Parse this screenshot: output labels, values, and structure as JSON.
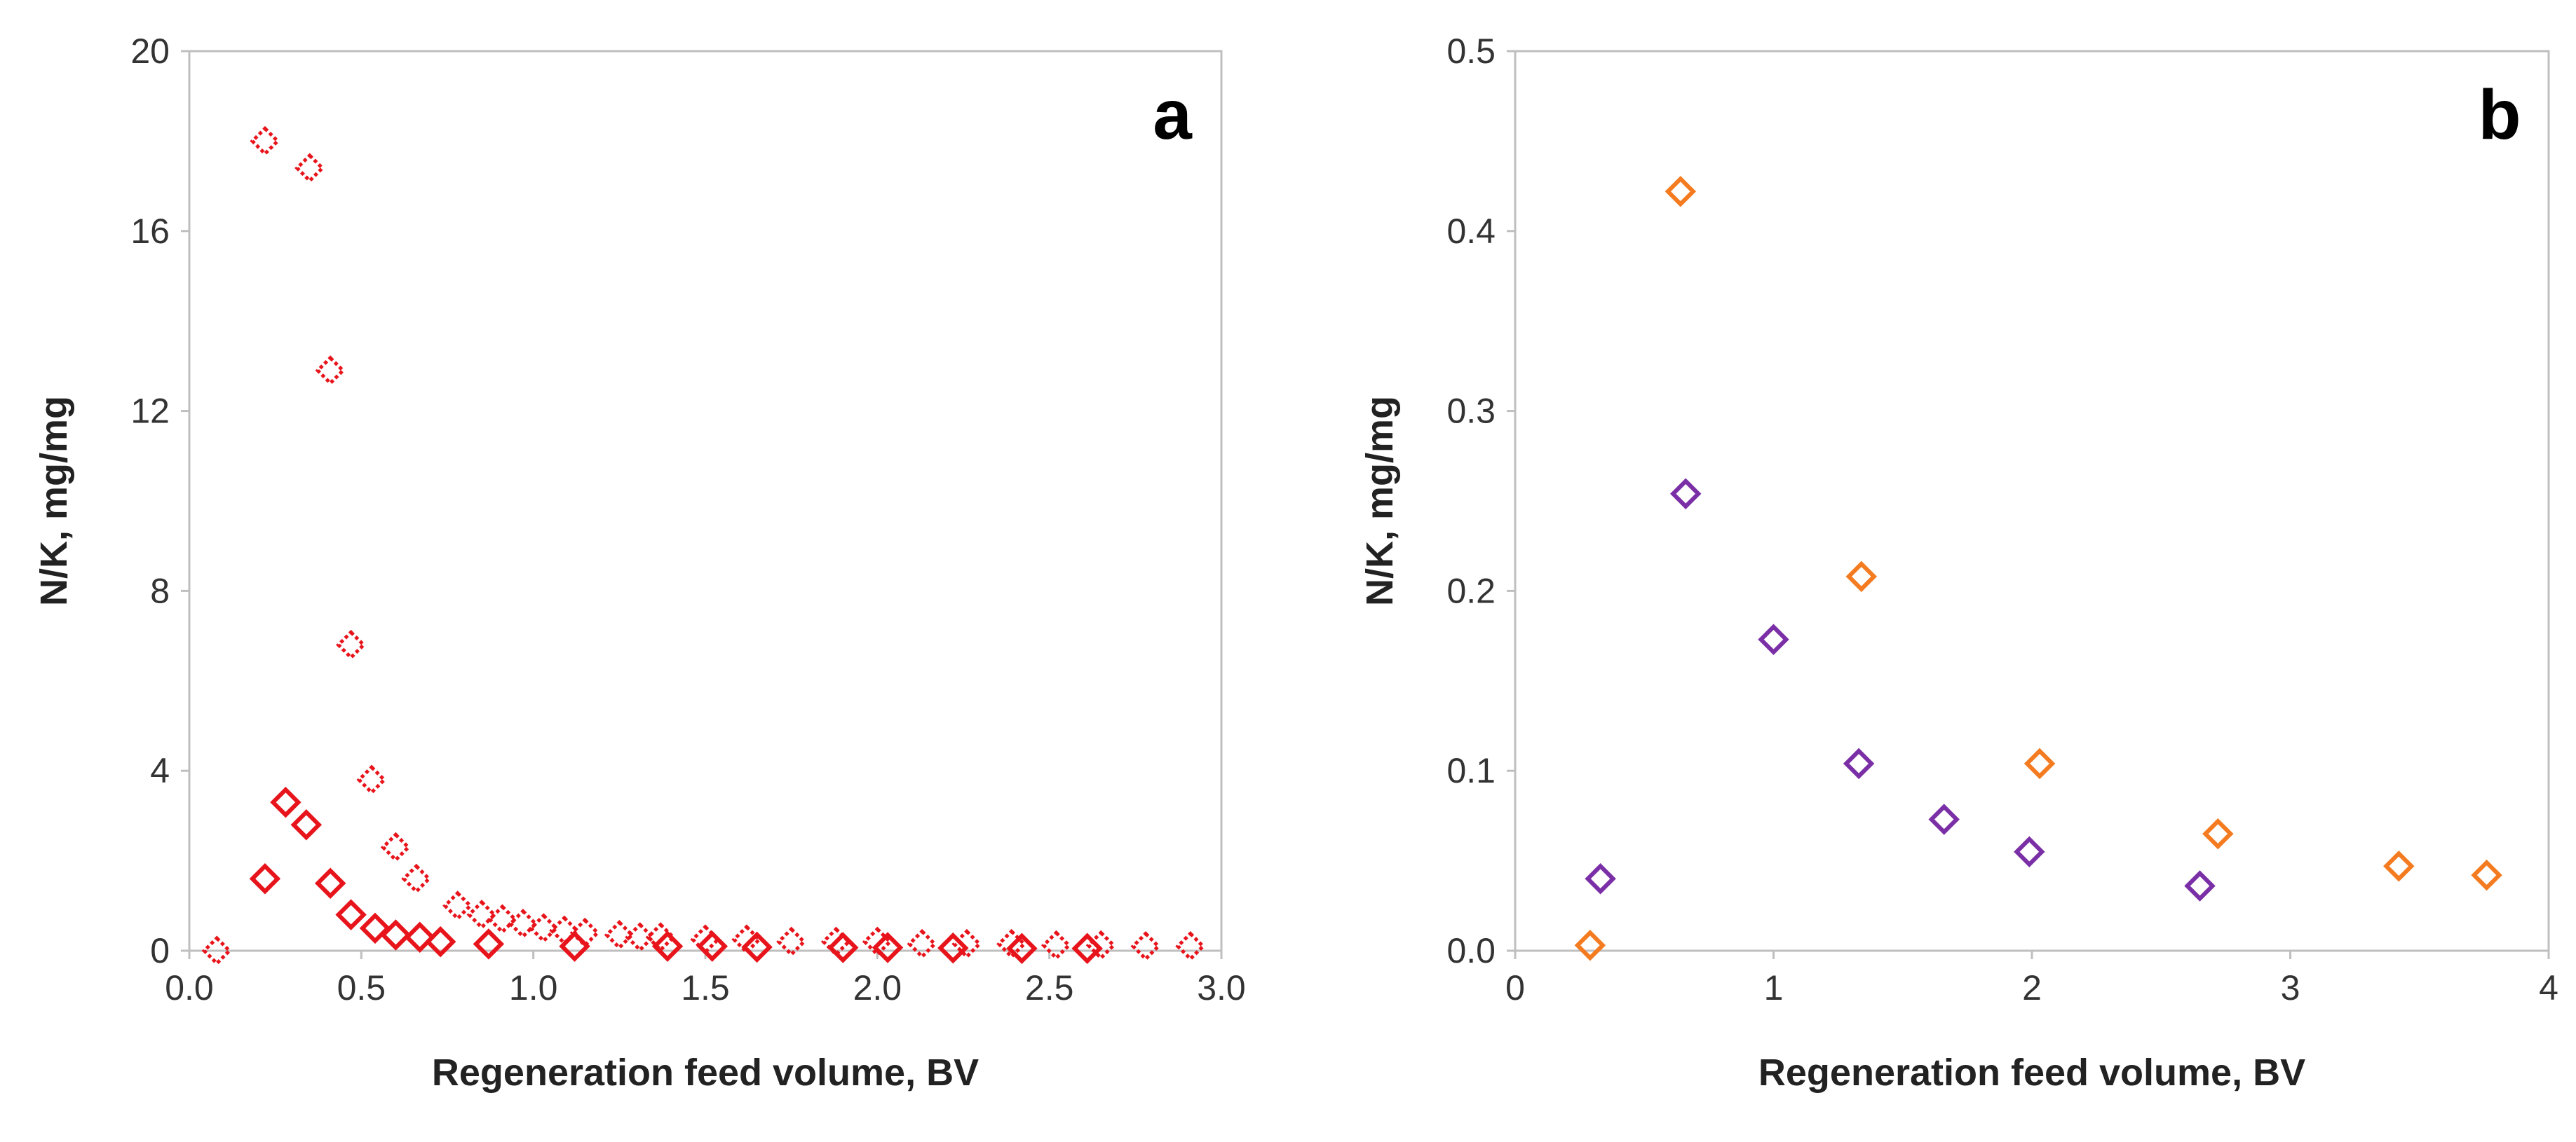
{
  "chart_data": [
    {
      "type": "scatter",
      "panel_label": "a",
      "xlabel": "Regeneration feed volume, BV",
      "ylabel": "N/K, mg/mg",
      "xlim": [
        0,
        3
      ],
      "ylim": [
        0,
        20
      ],
      "xticks": [
        "0.0",
        "0.5",
        "1.0",
        "1.5",
        "2.0",
        "2.5",
        "3.0"
      ],
      "yticks": [
        "0",
        "4",
        "8",
        "12",
        "16",
        "20"
      ],
      "grid": false,
      "legend": "none",
      "series": [
        {
          "style": "dotted",
          "marker": "diamond-open",
          "color": "#e8141b",
          "points": [
            [
              0.08,
              0.0
            ],
            [
              0.22,
              18.0
            ],
            [
              0.35,
              17.4
            ],
            [
              0.41,
              12.9
            ],
            [
              0.47,
              6.8
            ],
            [
              0.53,
              3.8
            ],
            [
              0.6,
              2.3
            ],
            [
              0.66,
              1.6
            ],
            [
              0.78,
              1.0
            ],
            [
              0.85,
              0.8
            ],
            [
              0.91,
              0.7
            ],
            [
              0.97,
              0.6
            ],
            [
              1.03,
              0.5
            ],
            [
              1.09,
              0.45
            ],
            [
              1.15,
              0.4
            ],
            [
              1.25,
              0.35
            ],
            [
              1.31,
              0.3
            ],
            [
              1.37,
              0.3
            ],
            [
              1.5,
              0.25
            ],
            [
              1.62,
              0.25
            ],
            [
              1.75,
              0.2
            ],
            [
              1.88,
              0.2
            ],
            [
              2.0,
              0.2
            ],
            [
              2.13,
              0.15
            ],
            [
              2.26,
              0.15
            ],
            [
              2.39,
              0.15
            ],
            [
              2.52,
              0.12
            ],
            [
              2.65,
              0.12
            ],
            [
              2.78,
              0.1
            ],
            [
              2.91,
              0.1
            ]
          ]
        },
        {
          "style": "solid",
          "marker": "diamond-open",
          "color": "#e8141b",
          "points": [
            [
              0.22,
              1.6
            ],
            [
              0.28,
              3.3
            ],
            [
              0.34,
              2.8
            ],
            [
              0.41,
              1.5
            ],
            [
              0.47,
              0.8
            ],
            [
              0.54,
              0.5
            ],
            [
              0.6,
              0.35
            ],
            [
              0.67,
              0.3
            ],
            [
              0.73,
              0.2
            ],
            [
              0.87,
              0.15
            ],
            [
              1.12,
              0.1
            ],
            [
              1.39,
              0.1
            ],
            [
              1.52,
              0.1
            ],
            [
              1.65,
              0.08
            ],
            [
              1.9,
              0.07
            ],
            [
              2.03,
              0.07
            ],
            [
              2.22,
              0.06
            ],
            [
              2.42,
              0.05
            ],
            [
              2.61,
              0.05
            ]
          ]
        }
      ]
    },
    {
      "type": "scatter",
      "panel_label": "b",
      "xlabel": "Regeneration feed volume, BV",
      "ylabel": "N/K, mg/mg",
      "xlim": [
        0,
        4
      ],
      "ylim": [
        0,
        0.5
      ],
      "xticks": [
        "0",
        "1",
        "2",
        "3",
        "4"
      ],
      "yticks": [
        "0.0",
        "0.1",
        "0.2",
        "0.3",
        "0.4",
        "0.5"
      ],
      "grid": false,
      "legend": "none",
      "series": [
        {
          "style": "solid",
          "marker": "diamond-open",
          "color": "#f47b20",
          "points": [
            [
              0.29,
              0.003
            ],
            [
              0.64,
              0.422
            ],
            [
              1.34,
              0.208
            ],
            [
              2.03,
              0.104
            ],
            [
              2.72,
              0.065
            ],
            [
              3.42,
              0.047
            ],
            [
              3.76,
              0.042
            ]
          ]
        },
        {
          "style": "solid",
          "marker": "diamond-open",
          "color": "#7b2fa6",
          "points": [
            [
              0.33,
              0.04
            ],
            [
              0.66,
              0.254
            ],
            [
              1.0,
              0.173
            ],
            [
              1.33,
              0.104
            ],
            [
              1.66,
              0.073
            ],
            [
              1.99,
              0.055
            ],
            [
              2.65,
              0.036
            ]
          ]
        }
      ]
    }
  ],
  "colors": {
    "axis": "#bfbfbf",
    "text": "#333333"
  }
}
